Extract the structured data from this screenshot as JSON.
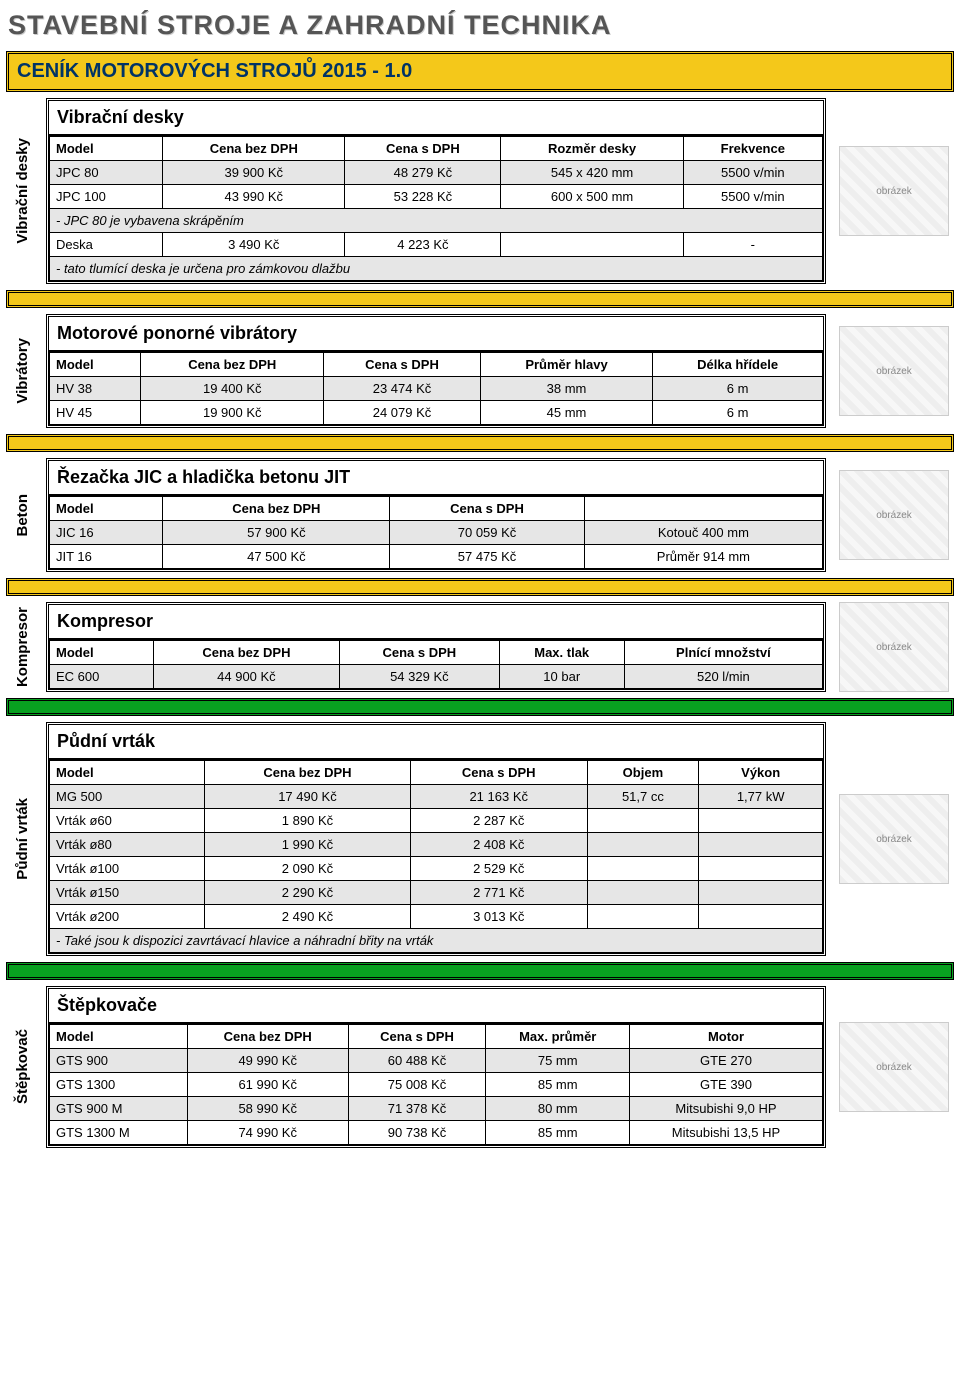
{
  "page_title": "STAVEBNÍ STROJE A ZAHRADNÍ TECHNIKA",
  "main_bar": "CENÍK MOTOROVÝCH STROJŮ 2015 - 1.0",
  "colors": {
    "yellow": "#f4c81a",
    "green": "#08a020",
    "title_color": "#003366",
    "gray_row": "#e6e6e6"
  },
  "vibracni_desky": {
    "sidelabel": "Vibrační desky",
    "subtitle": "Vibrační desky",
    "headers": [
      "Model",
      "Cena bez DPH",
      "Cena s DPH",
      "Rozměr desky",
      "Frekvence"
    ],
    "rows": [
      {
        "cells": [
          "JPC 80",
          "39 900 Kč",
          "48 279 Kč",
          "545 x 420 mm",
          "5500 v/min"
        ],
        "gray": true
      },
      {
        "cells": [
          "JPC 100",
          "43 990 Kč",
          "53 228 Kč",
          "600 x 500 mm",
          "5500 v/min"
        ],
        "gray": false
      }
    ],
    "note1": "- JPC 80 je vybavena skrápěním",
    "deska_row": [
      "Deska",
      "3 490 Kč",
      "4 223 Kč",
      "",
      "-"
    ],
    "note2": "- tato tlumící deska je určena pro zámkovou dlažbu"
  },
  "vibratory": {
    "sidelabel": "Vibrátory",
    "subtitle": "Motorové ponorné vibrátory",
    "headers": [
      "Model",
      "Cena bez DPH",
      "Cena s DPH",
      "Průměr hlavy",
      "Délka hřídele"
    ],
    "rows": [
      {
        "cells": [
          "HV 38",
          "19 400 Kč",
          "23 474 Kč",
          "38 mm",
          "6 m"
        ],
        "gray": true
      },
      {
        "cells": [
          "HV 45",
          "19 900 Kč",
          "24 079 Kč",
          "45 mm",
          "6 m"
        ],
        "gray": false
      }
    ]
  },
  "beton": {
    "sidelabel": "Beton",
    "subtitle": "Řezačka JIC a hladička betonu JIT",
    "headers": [
      "Model",
      "Cena bez DPH",
      "Cena s DPH",
      "",
      ""
    ],
    "rows": [
      {
        "cells": [
          "JIC 16",
          "57 900 Kč",
          "70 059 Kč",
          "Kotouč 400 mm"
        ],
        "gray": true
      },
      {
        "cells": [
          "JIT 16",
          "47 500 Kč",
          "57 475 Kč",
          "Průměr 914 mm"
        ],
        "gray": false
      }
    ]
  },
  "kompresor": {
    "sidelabel": "Kompresor",
    "subtitle": "Kompresor",
    "headers": [
      "Model",
      "Cena bez DPH",
      "Cena s DPH",
      "Max. tlak",
      "Plnící množství"
    ],
    "rows": [
      {
        "cells": [
          "EC 600",
          "44 900 Kč",
          "54 329 Kč",
          "10 bar",
          "520 l/min"
        ],
        "gray": true
      }
    ]
  },
  "pudni_vrtak": {
    "sidelabel": "Půdní vrták",
    "subtitle": "Půdní vrták",
    "headers": [
      "Model",
      "Cena bez DPH",
      "Cena s DPH",
      "Objem",
      "Výkon"
    ],
    "rows": [
      {
        "cells": [
          "MG 500",
          "17 490 Kč",
          "21 163 Kč",
          "51,7 cc",
          "1,77 kW"
        ],
        "gray": true
      },
      {
        "cells": [
          "Vrták ø60",
          "1 890 Kč",
          "2 287 Kč",
          "",
          ""
        ],
        "gray": false
      },
      {
        "cells": [
          "Vrták ø80",
          "1 990 Kč",
          "2 408 Kč",
          "",
          ""
        ],
        "gray": true
      },
      {
        "cells": [
          "Vrták ø100",
          "2 090 Kč",
          "2 529 Kč",
          "",
          ""
        ],
        "gray": false
      },
      {
        "cells": [
          "Vrták ø150",
          "2 290 Kč",
          "2 771 Kč",
          "",
          ""
        ],
        "gray": true
      },
      {
        "cells": [
          "Vrták ø200",
          "2 490 Kč",
          "3 013 Kč",
          "",
          ""
        ],
        "gray": false
      }
    ],
    "note": "- Také jsou k dispozici zavrtávací hlavice a náhradní břity na vrták"
  },
  "stepkovace": {
    "sidelabel": "Štěpkovač",
    "subtitle": "Štěpkovače",
    "headers": [
      "Model",
      "Cena bez DPH",
      "Cena s DPH",
      "Max. průměr",
      "Motor"
    ],
    "rows": [
      {
        "cells": [
          "GTS 900",
          "49 990 Kč",
          "60 488 Kč",
          "75 mm",
          "GTE 270"
        ],
        "gray": true
      },
      {
        "cells": [
          "GTS 1300",
          "61 990 Kč",
          "75 008 Kč",
          "85 mm",
          "GTE 390"
        ],
        "gray": false
      },
      {
        "cells": [
          "GTS 900 M",
          "58 990 Kč",
          "71 378 Kč",
          "80 mm",
          "Mitsubishi 9,0 HP"
        ],
        "gray": true
      },
      {
        "cells": [
          "GTS 1300 M",
          "74 990 Kč",
          "90 738 Kč",
          "85 mm",
          "Mitsubishi 13,5 HP"
        ],
        "gray": false
      }
    ]
  },
  "image_captions": {
    "desky": "obrázek",
    "vibrator": "obrázek",
    "beton": "obrázek",
    "kompresor": "obrázek",
    "vrtak": "obrázek",
    "stepkovac": "obrázek"
  }
}
